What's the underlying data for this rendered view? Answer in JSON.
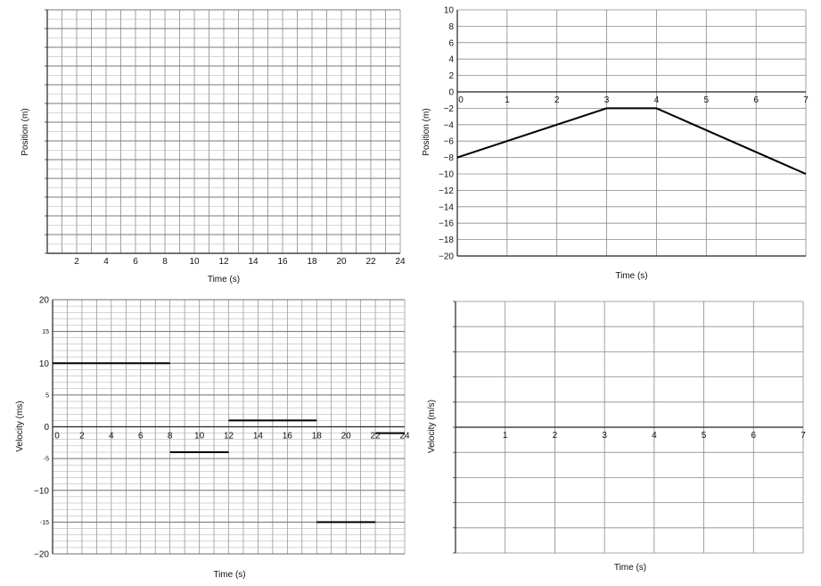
{
  "chart_data": [
    {
      "type": "line",
      "xlabel": "Time (s)",
      "ylabel": "Position (m)",
      "xlim": [
        0,
        24
      ],
      "x_ticks": [
        "2",
        "4",
        "6",
        "8",
        "10",
        "12",
        "14",
        "16",
        "18",
        "20",
        "22",
        "24"
      ],
      "series": []
    },
    {
      "type": "line",
      "xlabel": "Time (s)",
      "ylabel": "Position (m)",
      "xlim": [
        0,
        7
      ],
      "ylim": [
        -20,
        10
      ],
      "x_ticks": [
        "0",
        "1",
        "2",
        "3",
        "4",
        "5",
        "6",
        "7"
      ],
      "y_ticks": [
        "10",
        "8",
        "6",
        "4",
        "2",
        "0",
        "−2",
        "−4",
        "−6",
        "−8",
        "−10",
        "−12",
        "−14",
        "−16",
        "−18",
        "−20"
      ],
      "series": [
        {
          "x": [
            0,
            3,
            4,
            7
          ],
          "y": [
            -8,
            -2,
            -2,
            -10
          ]
        }
      ]
    },
    {
      "type": "line",
      "xlabel": "Time (s)",
      "ylabel": "Velocity (ms)",
      "xlim": [
        0,
        24
      ],
      "ylim": [
        -20,
        20
      ],
      "x_ticks": [
        "0",
        "2",
        "4",
        "6",
        "8",
        "10",
        "12",
        "14",
        "16",
        "18",
        "20",
        "22",
        "24"
      ],
      "y_ticks": [
        "20",
        "15",
        "10",
        "5",
        "0",
        "-5",
        "−10",
        "-15",
        "−20"
      ],
      "segments": [
        {
          "x": [
            0,
            8
          ],
          "y": 10
        },
        {
          "x": [
            8,
            12
          ],
          "y": -4
        },
        {
          "x": [
            12,
            18
          ],
          "y": 1
        },
        {
          "x": [
            18,
            22
          ],
          "y": -15
        },
        {
          "x": [
            22,
            24
          ],
          "y": -1
        }
      ]
    },
    {
      "type": "line",
      "xlabel": "Time (s)",
      "ylabel": "Velocity (m/s)",
      "xlim": [
        0,
        7
      ],
      "x_ticks": [
        "1",
        "2",
        "3",
        "4",
        "5",
        "6",
        "7"
      ],
      "series": []
    }
  ]
}
